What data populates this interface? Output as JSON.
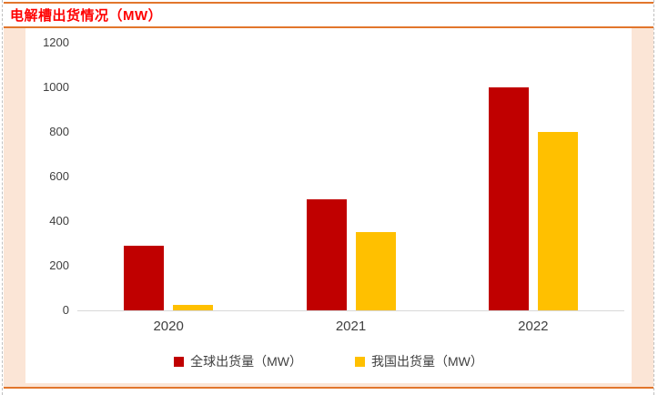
{
  "header": {
    "title": "电解槽出货情况（MW）"
  },
  "colors": {
    "title_red": "#ff0000",
    "rule_orange": "#e2762c",
    "peach_background": "#fbe5d6",
    "axis_line_gray": "#d9d9d9",
    "axis_text_gray": "#404040",
    "legend_text": "#3f3f3f",
    "series_global_red": "#c00000",
    "series_china_gold": "#ffc000"
  },
  "chart_data": {
    "type": "bar",
    "title": "电解槽出货情况（MW）",
    "categories": [
      "2020",
      "2021",
      "2022"
    ],
    "series": [
      {
        "name": "全球出货量（MW）",
        "color": "#c00000",
        "values": [
          290,
          500,
          1000
        ]
      },
      {
        "name": "我国出货量（MW）",
        "color": "#ffc000",
        "values": [
          25,
          350,
          800
        ]
      }
    ],
    "xlabel": "",
    "ylabel": "",
    "ylim": [
      0,
      1200
    ],
    "yticks": [
      0,
      200,
      400,
      600,
      800,
      1000,
      1200
    ],
    "grid": false,
    "legend_position": "bottom"
  }
}
